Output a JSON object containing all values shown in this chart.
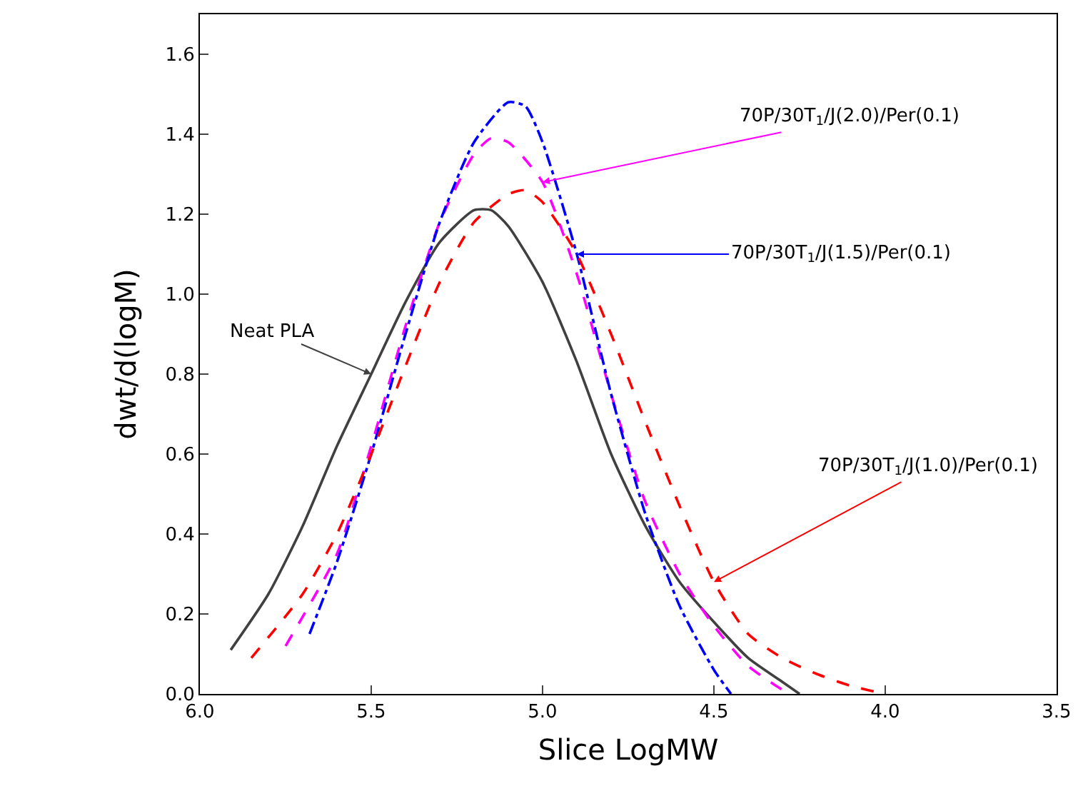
{
  "chart_data": {
    "type": "line",
    "xlabel": "Slice LogMW",
    "ylabel": "dwt/d(logM)",
    "xlim": [
      6,
      3.5
    ],
    "ylim": [
      0,
      1.7
    ],
    "xticks": [
      {
        "value": 6,
        "label": "6.0"
      },
      {
        "value": 5.5,
        "label": "5.5"
      },
      {
        "value": 5,
        "label": "5.0"
      },
      {
        "value": 4.5,
        "label": "4.5"
      },
      {
        "value": 4,
        "label": "4.0"
      },
      {
        "value": 3.5,
        "label": "3.5"
      }
    ],
    "yticks": [
      {
        "value": 0,
        "label": "0.0"
      },
      {
        "value": 0.2,
        "label": "0.2"
      },
      {
        "value": 0.4,
        "label": "0.4"
      },
      {
        "value": 0.6,
        "label": "0.6"
      },
      {
        "value": 0.8,
        "label": "0.8"
      },
      {
        "value": 1,
        "label": "1.0"
      },
      {
        "value": 1.2,
        "label": "1.2"
      },
      {
        "value": 1.4,
        "label": "1.4"
      },
      {
        "value": 1.6,
        "label": "1.6"
      }
    ],
    "grid": false,
    "marker": "none",
    "series": [
      {
        "color": "#404040",
        "line_style": "solid",
        "x": [
          5.91,
          5.8,
          5.7,
          5.6,
          5.5,
          5.4,
          5.3,
          5.2,
          5.15,
          5.1,
          5.0,
          4.9,
          4.8,
          4.7,
          4.6,
          4.5,
          4.4,
          4.3,
          4.25
        ],
        "values": [
          0.11,
          0.25,
          0.42,
          0.62,
          0.8,
          0.98,
          1.13,
          1.21,
          1.21,
          1.17,
          1.03,
          0.83,
          0.6,
          0.42,
          0.28,
          0.18,
          0.09,
          0.03,
          0.0
        ]
      },
      {
        "color": "#ff00ff",
        "line_style": "dashed",
        "x": [
          5.75,
          5.6,
          5.5,
          5.4,
          5.3,
          5.2,
          5.15,
          5.1,
          5.0,
          4.9,
          4.8,
          4.7,
          4.6,
          4.5,
          4.4,
          4.3
        ],
        "values": [
          0.12,
          0.35,
          0.62,
          0.92,
          1.18,
          1.35,
          1.39,
          1.38,
          1.28,
          1.05,
          0.75,
          0.48,
          0.3,
          0.17,
          0.07,
          0.01
        ]
      },
      {
        "color": "#0000ff",
        "line_style": "dashdot",
        "x": [
          5.68,
          5.6,
          5.5,
          5.4,
          5.3,
          5.2,
          5.1,
          5.05,
          5.0,
          4.9,
          4.8,
          4.7,
          4.6,
          4.5,
          4.45
        ],
        "values": [
          0.15,
          0.33,
          0.6,
          0.9,
          1.18,
          1.38,
          1.48,
          1.47,
          1.38,
          1.1,
          0.75,
          0.45,
          0.22,
          0.06,
          0.0
        ]
      },
      {
        "color": "#ff0000",
        "line_style": "dashed",
        "x": [
          5.85,
          5.7,
          5.6,
          5.5,
          5.4,
          5.3,
          5.2,
          5.1,
          5.05,
          5.0,
          4.9,
          4.8,
          4.7,
          4.6,
          4.5,
          4.4,
          4.3,
          4.2,
          4.1,
          4.0
        ],
        "values": [
          0.09,
          0.25,
          0.4,
          0.6,
          0.82,
          1.03,
          1.18,
          1.25,
          1.26,
          1.23,
          1.1,
          0.9,
          0.68,
          0.47,
          0.28,
          0.15,
          0.09,
          0.05,
          0.02,
          0.0
        ]
      }
    ],
    "annotations": [
      {
        "text": "Neat PLA",
        "x": 5.5,
        "y": 0.8
      },
      {
        "text": "70P/30T$_{1}$/J(2.0)/Per(0.1)",
        "x": 5.0,
        "y": 1.28
      },
      {
        "text": "70P/30T$_{1}$/J(1.5)/Per(0.1)",
        "x": 4.9,
        "y": 1.1
      },
      {
        "text": "70P/30T$_{1}$/J(1.0)/Per(0.1)",
        "x": 4.5,
        "y": 0.28
      }
    ]
  }
}
